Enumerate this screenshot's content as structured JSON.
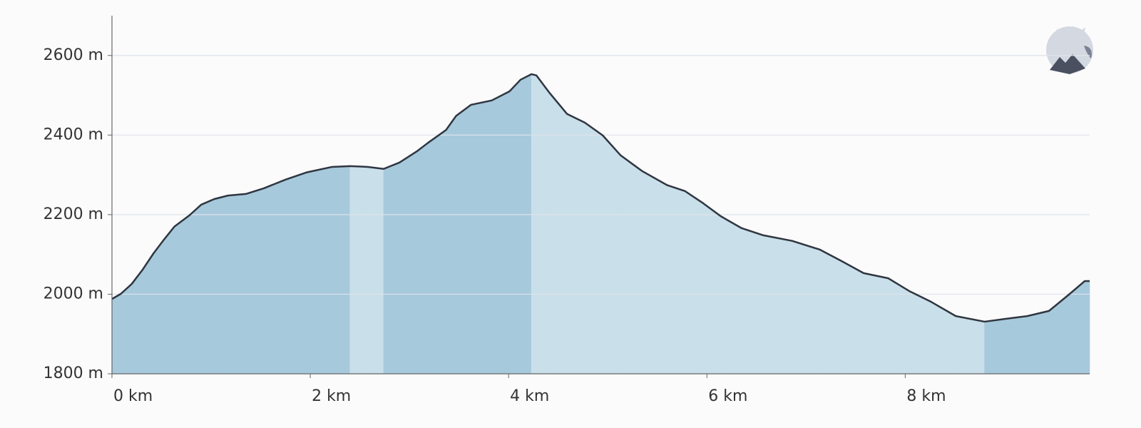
{
  "chart_data": {
    "type": "area",
    "x": [
      0,
      0.09,
      0.2,
      0.31,
      0.42,
      0.53,
      0.63,
      0.78,
      0.9,
      1.03,
      1.17,
      1.35,
      1.53,
      1.75,
      1.96,
      2.22,
      2.4,
      2.58,
      2.74,
      2.9,
      3.08,
      3.19,
      3.37,
      3.47,
      3.62,
      3.83,
      4.01,
      4.12,
      4.23,
      4.28,
      4.41,
      4.59,
      4.77,
      4.95,
      5.13,
      5.35,
      5.6,
      5.78,
      5.96,
      6.14,
      6.35,
      6.57,
      6.86,
      7.14,
      7.36,
      7.58,
      7.83,
      8.04,
      8.26,
      8.51,
      8.8,
      9.01,
      9.23,
      9.45,
      9.66,
      9.81,
      9.86
    ],
    "values": [
      1988,
      2001,
      2026,
      2062,
      2103,
      2139,
      2170,
      2198,
      2225,
      2239,
      2248,
      2252,
      2266,
      2288,
      2306,
      2320,
      2322,
      2320,
      2315,
      2331,
      2360,
      2381,
      2413,
      2448,
      2476,
      2487,
      2510,
      2539,
      2553,
      2550,
      2507,
      2453,
      2431,
      2399,
      2349,
      2309,
      2274,
      2259,
      2229,
      2196,
      2166,
      2148,
      2134,
      2112,
      2083,
      2053,
      2040,
      2008,
      1981,
      1945,
      1931,
      1938,
      1945,
      1958,
      2001,
      2033,
      2033
    ],
    "line_color": "#2f3640",
    "ascent_color": "#a7c9dc",
    "descent_color": "#c9dfea",
    "xlim": [
      0,
      9.86
    ],
    "ylim": [
      1800,
      2700
    ],
    "xticks": [
      {
        "value": 0,
        "label": "0 km"
      },
      {
        "value": 2,
        "label": "2 km"
      },
      {
        "value": 4,
        "label": "4 km"
      },
      {
        "value": 6,
        "label": "6 km"
      },
      {
        "value": 8,
        "label": "8 km"
      }
    ],
    "yticks": [
      {
        "value": 1800,
        "label": "1800 m"
      },
      {
        "value": 2000,
        "label": "2000 m"
      },
      {
        "value": 2200,
        "label": "2200 m"
      },
      {
        "value": 2400,
        "label": "2400 m"
      },
      {
        "value": 2600,
        "label": "2600 m"
      }
    ],
    "grid": true
  }
}
